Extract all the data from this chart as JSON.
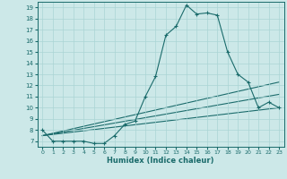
{
  "title": "",
  "xlabel": "Humidex (Indice chaleur)",
  "bg_color": "#cce8e8",
  "line_color": "#1a6b6b",
  "grid_color": "#aad4d4",
  "xlim": [
    -0.5,
    23.5
  ],
  "ylim": [
    6.5,
    19.5
  ],
  "xticks": [
    0,
    1,
    2,
    3,
    4,
    5,
    6,
    7,
    8,
    9,
    10,
    11,
    12,
    13,
    14,
    15,
    16,
    17,
    18,
    19,
    20,
    21,
    22,
    23
  ],
  "yticks": [
    7,
    8,
    9,
    10,
    11,
    12,
    13,
    14,
    15,
    16,
    17,
    18,
    19
  ],
  "main_series": {
    "x": [
      0,
      1,
      2,
      3,
      4,
      5,
      6,
      7,
      8,
      9,
      10,
      11,
      12,
      13,
      14,
      15,
      16,
      17,
      18,
      19,
      20,
      21,
      22,
      23
    ],
    "y": [
      8.0,
      7.0,
      7.0,
      7.0,
      7.0,
      6.8,
      6.8,
      7.5,
      8.5,
      8.8,
      11.0,
      12.8,
      16.5,
      17.3,
      19.2,
      18.4,
      18.5,
      18.3,
      15.0,
      13.0,
      12.3,
      10.0,
      10.5,
      10.0
    ]
  },
  "trend_lines": [
    {
      "x": [
        0,
        23
      ],
      "y": [
        7.5,
        10.0
      ]
    },
    {
      "x": [
        0,
        23
      ],
      "y": [
        7.5,
        11.2
      ]
    },
    {
      "x": [
        0,
        23
      ],
      "y": [
        7.5,
        12.3
      ]
    }
  ]
}
